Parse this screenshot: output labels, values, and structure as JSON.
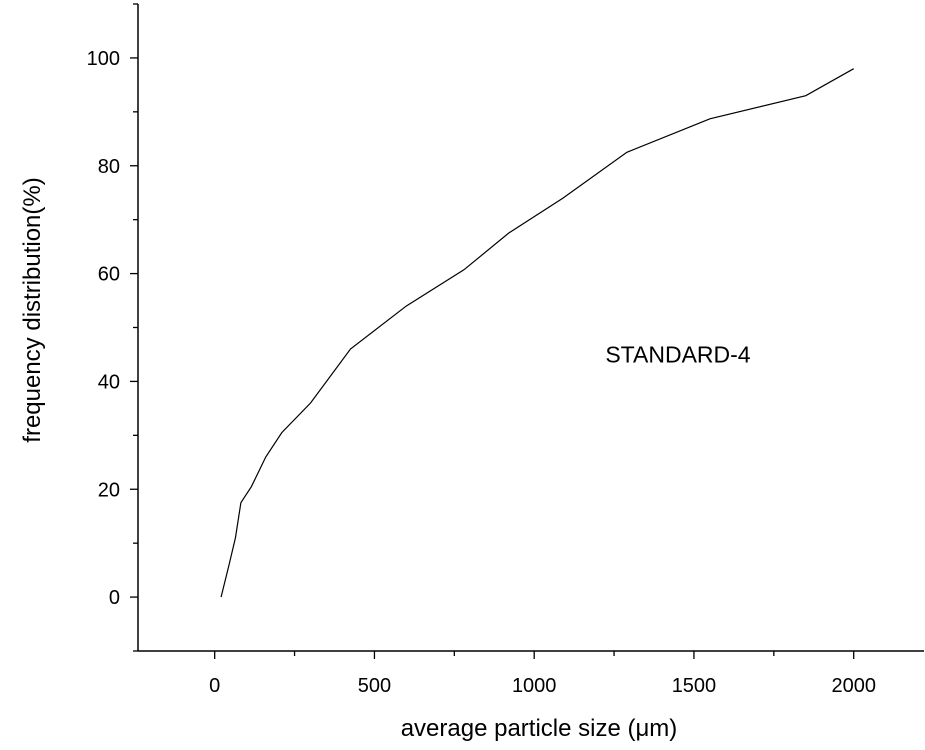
{
  "chart_data": {
    "type": "line",
    "title": "",
    "xlabel": "average particle size (μm)",
    "ylabel": "frequency distribution(%)",
    "xlim": [
      -240,
      2220
    ],
    "ylim": [
      -10,
      110
    ],
    "xticks": [
      0,
      500,
      1000,
      1500,
      2000
    ],
    "yticks": [
      0,
      20,
      40,
      60,
      80,
      100
    ],
    "grid": false,
    "annotation": {
      "text": "STANDARD-4",
      "x": 1450,
      "y": 43.5
    },
    "series": [
      {
        "x": [
          20,
          45,
          65,
          82,
          115,
          160,
          210,
          300,
          425,
          600,
          780,
          920,
          1090,
          1290,
          1550,
          1850,
          2000
        ],
        "y": [
          0,
          6,
          11,
          17.5,
          20.5,
          26,
          30.5,
          36,
          46,
          54,
          60.7,
          67.5,
          74,
          82.5,
          88.7,
          93,
          98
        ]
      }
    ]
  }
}
